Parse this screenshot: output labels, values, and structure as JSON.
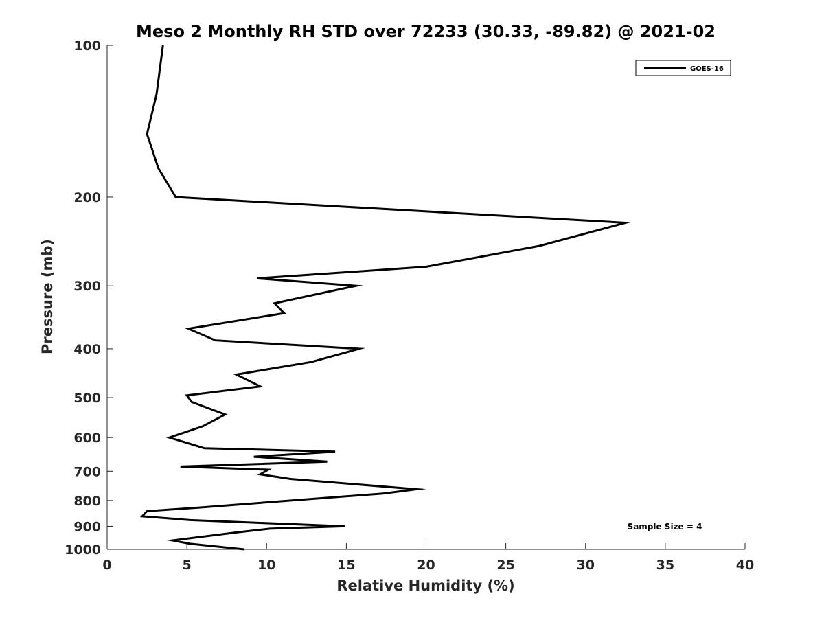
{
  "chart_data": {
    "type": "line",
    "title": "Meso 2 Monthly RH STD over 72233 (30.33, -89.82) @ 2021-02",
    "xlabel": "Relative Humidity (%)",
    "ylabel": "Pressure (mb)",
    "xlim": [
      0,
      40
    ],
    "ylim": [
      100,
      1000
    ],
    "yscale": "log",
    "y_reversed": true,
    "xticks": [
      0,
      5,
      10,
      15,
      20,
      25,
      30,
      35,
      40
    ],
    "yticks": [
      100,
      200,
      300,
      400,
      500,
      600,
      700,
      800,
      900,
      1000
    ],
    "grid": false,
    "legend": {
      "position": "top-right"
    },
    "annotation": "Sample Size = 4",
    "series": [
      {
        "name": "GOES-16",
        "color": "#000000",
        "x": [
          3.5,
          3.1,
          2.5,
          2.8,
          3.2,
          4.3,
          32.5,
          27.1,
          20.0,
          9.4,
          15.6,
          10.5,
          11.1,
          5.1,
          6.8,
          15.8,
          12.8,
          8.1,
          9.6,
          5.0,
          5.3,
          7.4,
          6.0,
          3.9,
          6.1,
          14.3,
          9.2,
          13.8,
          4.6,
          10.1,
          9.6,
          11.5,
          19.4,
          17.3,
          6.0,
          2.5,
          2.2,
          5.2,
          14.9,
          10.2,
          8.2,
          4.1,
          5.2,
          8.6
        ],
        "y": [
          100,
          125,
          150,
          160,
          175,
          200,
          225,
          250,
          275,
          290,
          300,
          325,
          340,
          365,
          385,
          400,
          425,
          450,
          475,
          495,
          510,
          540,
          570,
          600,
          630,
          640,
          655,
          670,
          685,
          695,
          710,
          725,
          760,
          775,
          825,
          840,
          860,
          875,
          900,
          910,
          925,
          960,
          975,
          1000
        ]
      }
    ]
  }
}
